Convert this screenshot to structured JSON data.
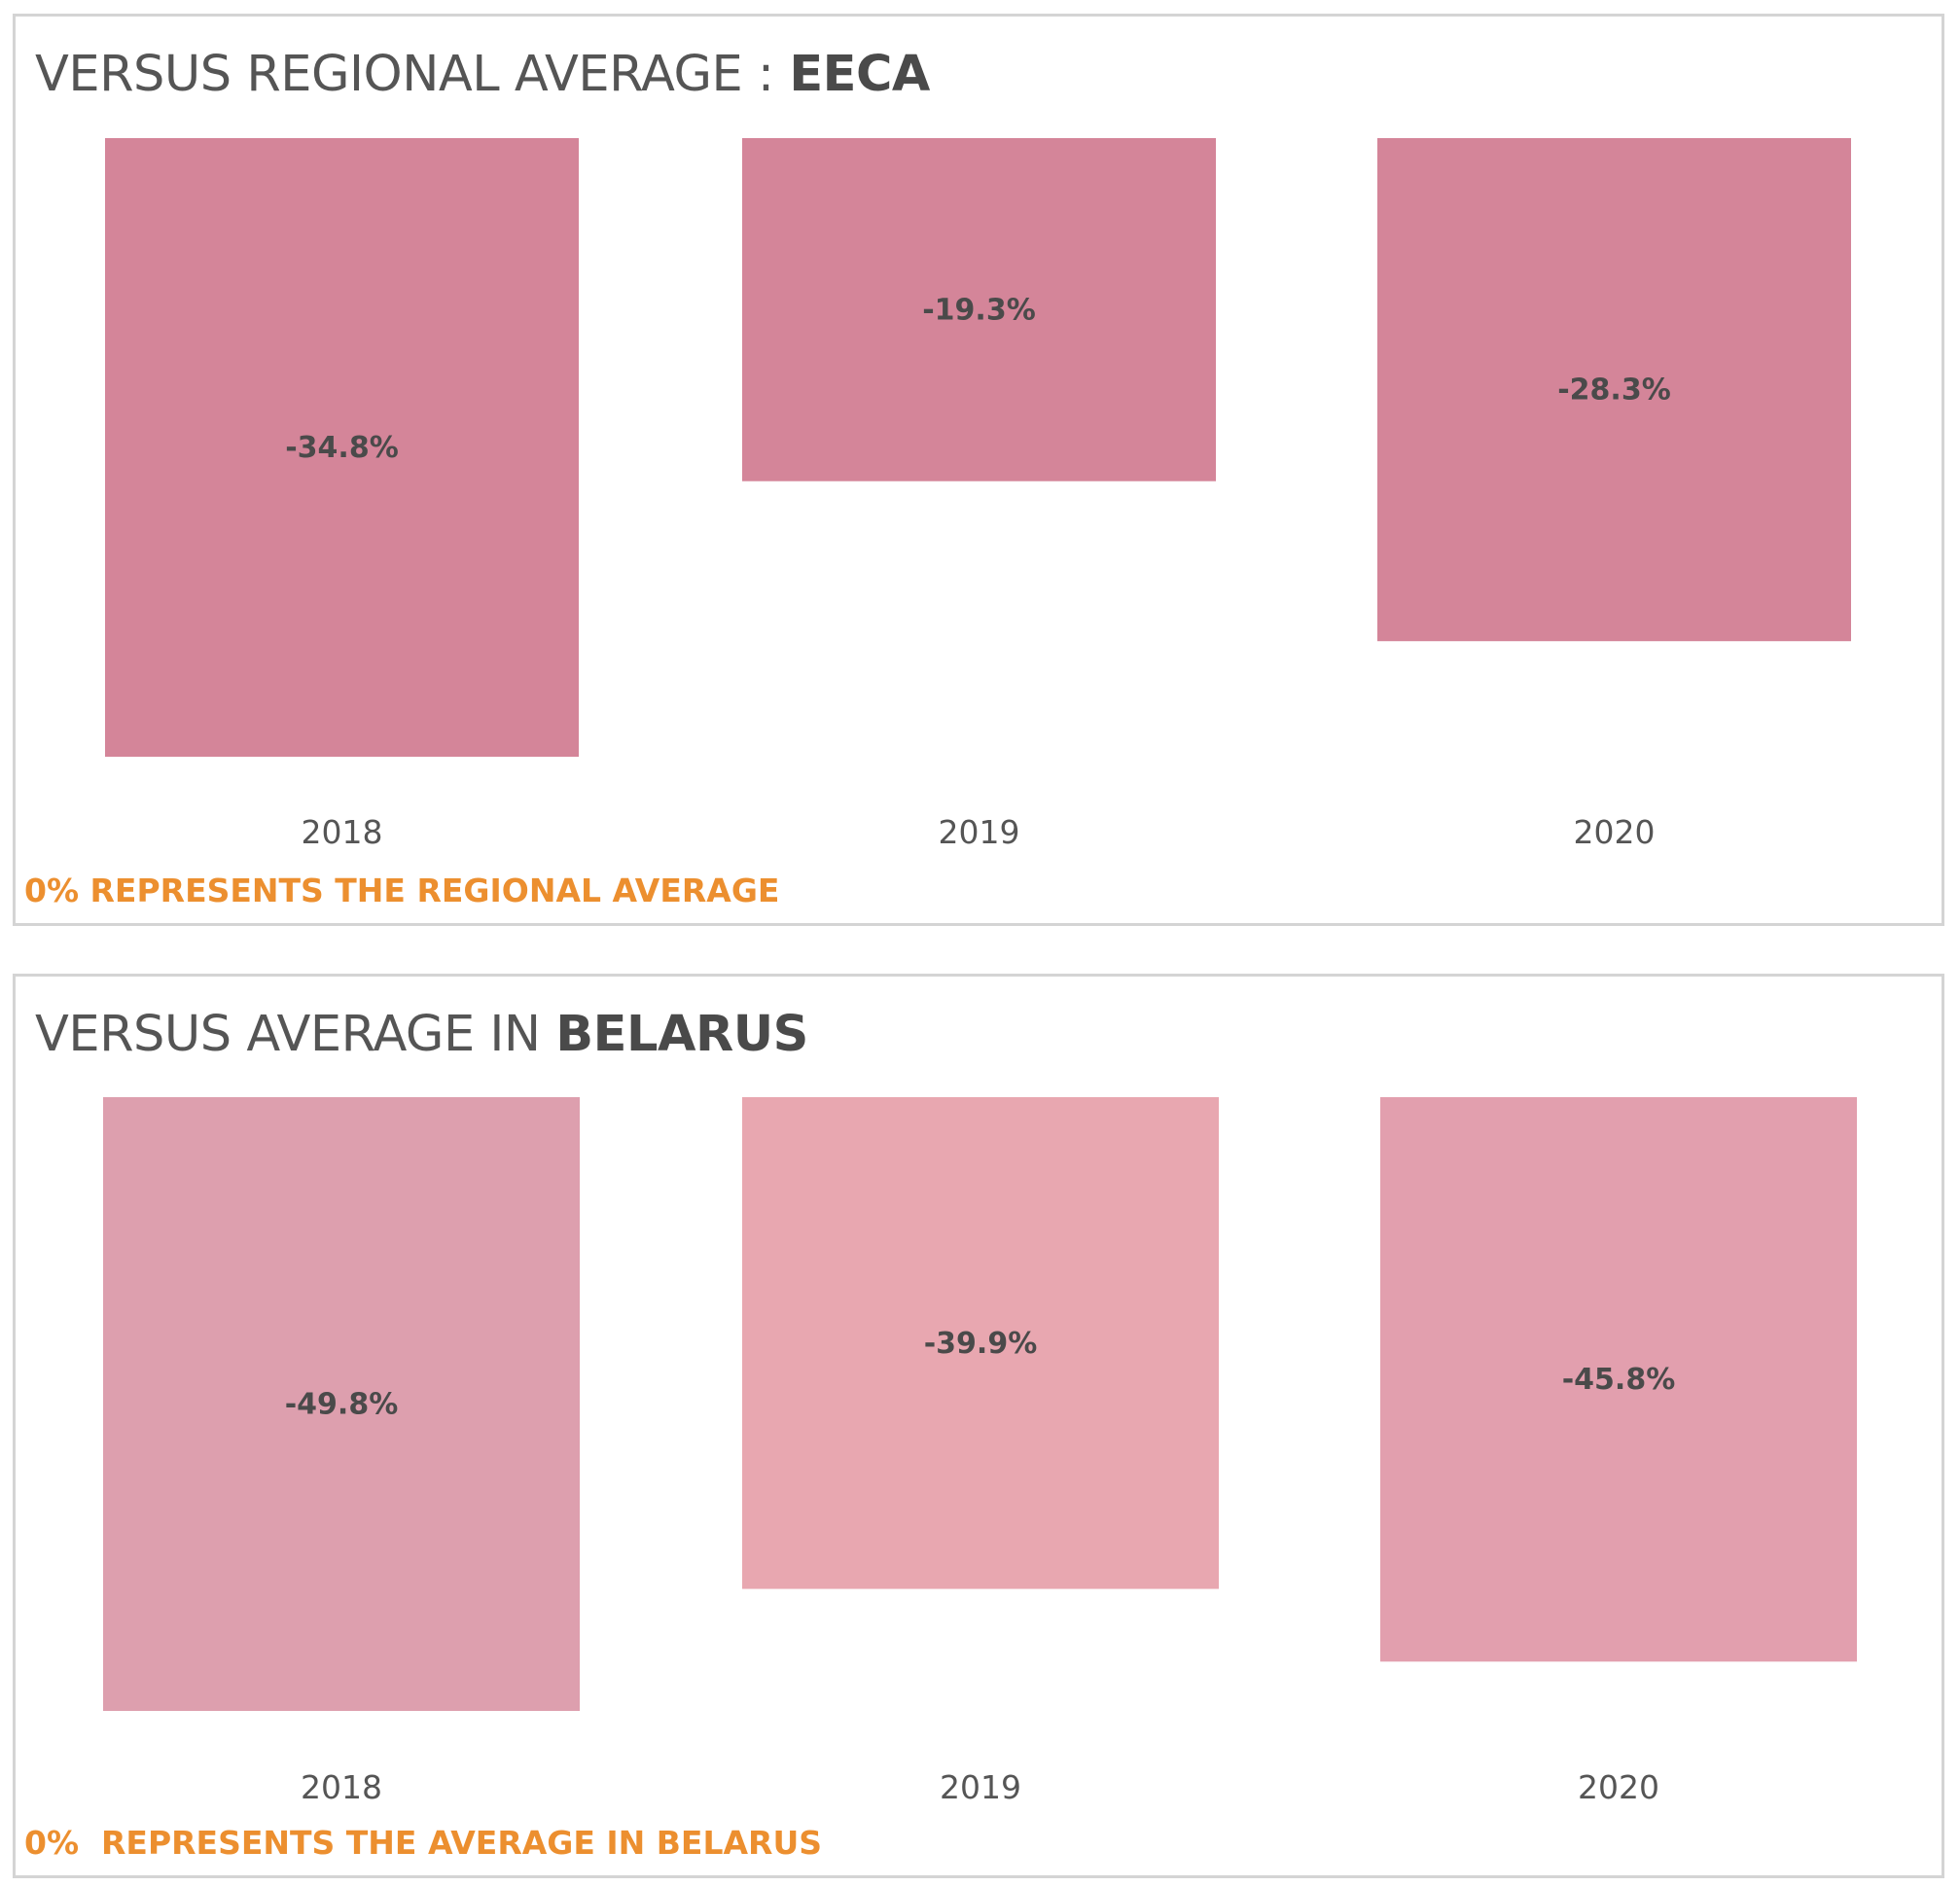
{
  "chart_data": [
    {
      "type": "bar",
      "title": "VERSUS REGIONAL AVERAGE : ",
      "title_highlight": "EECA",
      "categories": [
        "2018",
        "2019",
        "2020"
      ],
      "values": [
        -34.8,
        -19.3,
        -28.3
      ],
      "value_labels": [
        "-34.8%",
        "-19.3%",
        "-28.3%"
      ],
      "bar_colors": [
        "#d48599",
        "#d48599",
        "#d48599"
      ],
      "baseline": 0,
      "ylim": [
        -34.8,
        0
      ],
      "grid": false,
      "footnote": "0% REPRESENTS THE REGIONAL AVERAGE"
    },
    {
      "type": "bar",
      "title": "VERSUS AVERAGE IN ",
      "title_highlight": "BELARUS",
      "categories": [
        "2018",
        "2019",
        "2020"
      ],
      "values": [
        -49.8,
        -39.9,
        -45.8
      ],
      "value_labels": [
        "-49.8%",
        "-39.9%",
        "-45.8%"
      ],
      "bar_colors": [
        "#dd9fae",
        "#e8a7b0",
        "#e29fae"
      ],
      "baseline": 0,
      "ylim": [
        -49.8,
        0
      ],
      "grid": false,
      "footnote": "0%  REPRESENTS THE AVERAGE IN BELARUS"
    }
  ]
}
